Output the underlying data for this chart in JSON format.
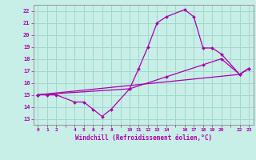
{
  "xlabel": "Windchill (Refroidissement éolien,°C)",
  "background_color": "#c8eee8",
  "grid_color": "#a0d8d0",
  "line_color": "#aa00aa",
  "xlim": [
    -0.5,
    23.5
  ],
  "ylim": [
    12.5,
    22.5
  ],
  "xticks": [
    0,
    1,
    2,
    3,
    4,
    5,
    6,
    7,
    8,
    9,
    10,
    11,
    12,
    13,
    14,
    15,
    16,
    17,
    18,
    19,
    20,
    21,
    22,
    23
  ],
  "xtick_labels": [
    "0",
    "1",
    "2",
    "",
    "4",
    "5",
    "6",
    "7",
    "8",
    "",
    "10",
    "11",
    "12",
    "13",
    "14",
    "",
    "16",
    "17",
    "18",
    "19",
    "20",
    "",
    "22",
    "23"
  ],
  "yticks": [
    13,
    14,
    15,
    16,
    17,
    18,
    19,
    20,
    21,
    22
  ],
  "series": [
    {
      "x": [
        0,
        1,
        2,
        4,
        5,
        6,
        7,
        8,
        10,
        11,
        12,
        13,
        14,
        16,
        17,
        18,
        19,
        20,
        22,
        23
      ],
      "y": [
        15.0,
        15.0,
        15.0,
        14.4,
        14.4,
        13.8,
        13.2,
        13.8,
        15.5,
        17.2,
        19.0,
        21.0,
        21.5,
        22.1,
        21.5,
        18.9,
        18.9,
        18.4,
        16.7,
        17.2
      ]
    },
    {
      "x": [
        0,
        22,
        23
      ],
      "y": [
        15.0,
        16.7,
        17.2
      ]
    },
    {
      "x": [
        0,
        10,
        14,
        18,
        20,
        22,
        23
      ],
      "y": [
        15.0,
        15.5,
        16.5,
        17.5,
        18.0,
        16.7,
        17.2
      ]
    }
  ]
}
